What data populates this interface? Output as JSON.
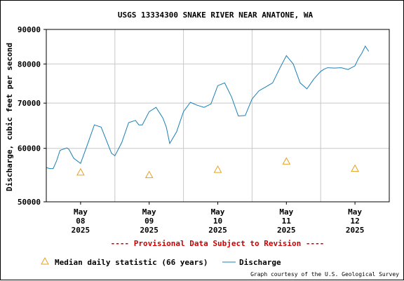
{
  "chart_data": {
    "type": "line",
    "title": "USGS 13334300 SNAKE RIVER NEAR ANATONE, WA",
    "ylabel": "Discharge, cubic feet per second",
    "yscale": "log",
    "ylim": [
      50000,
      90000
    ],
    "yticks": [
      50000,
      60000,
      70000,
      80000,
      90000
    ],
    "ytick_labels": [
      "50000",
      "60000",
      "70000",
      "80000",
      "90000"
    ],
    "xlim": [
      0,
      5
    ],
    "xticks": [
      {
        "x": 0.5,
        "month": "May",
        "day": "08",
        "year": "2025"
      },
      {
        "x": 1.5,
        "month": "May",
        "day": "09",
        "year": "2025"
      },
      {
        "x": 2.5,
        "month": "May",
        "day": "10",
        "year": "2025"
      },
      {
        "x": 3.5,
        "month": "May",
        "day": "11",
        "year": "2025"
      },
      {
        "x": 4.5,
        "month": "May",
        "day": "12",
        "year": "2025"
      }
    ],
    "grid": true,
    "series": [
      {
        "name": "Discharge",
        "color": "#1a7fb5",
        "x": [
          0,
          0.05,
          0.1,
          0.15,
          0.2,
          0.3,
          0.33,
          0.4,
          0.5,
          0.6,
          0.7,
          0.8,
          0.9,
          0.95,
          1.0,
          1.1,
          1.2,
          1.3,
          1.35,
          1.4,
          1.5,
          1.6,
          1.7,
          1.75,
          1.8,
          1.9,
          2.0,
          2.1,
          2.2,
          2.3,
          2.4,
          2.5,
          2.6,
          2.7,
          2.8,
          2.9,
          3.0,
          3.1,
          3.2,
          3.3,
          3.4,
          3.5,
          3.6,
          3.7,
          3.8,
          3.9,
          4.0,
          4.05,
          4.1,
          4.2,
          4.3,
          4.4,
          4.5,
          4.55,
          4.6,
          4.65,
          4.7
        ],
        "values": [
          56200,
          56000,
          56000,
          57500,
          59600,
          60100,
          59800,
          58000,
          57000,
          60800,
          65000,
          64500,
          60800,
          59000,
          58500,
          61200,
          65500,
          66000,
          65000,
          65000,
          68000,
          69000,
          66500,
          64500,
          61000,
          63500,
          68000,
          70200,
          69500,
          69000,
          69800,
          74300,
          75000,
          71500,
          67000,
          67100,
          71000,
          73000,
          74000,
          75000,
          78700,
          82300,
          80000,
          75000,
          73500,
          76000,
          78000,
          78600,
          79000,
          78900,
          79000,
          78500,
          79500,
          81500,
          83000,
          85000,
          83500
        ]
      }
    ],
    "median_points": {
      "name": "Median daily statistic (66 years)",
      "color": "#e6a020",
      "x": [
        0.5,
        1.5,
        2.5,
        3.5,
        4.5
      ],
      "values": [
        55300,
        54800,
        55800,
        57400,
        56000
      ]
    },
    "notice": "---- Provisional Data Subject to Revision ----",
    "notice_color": "#cc0000",
    "legend": {
      "placement": "bottom",
      "median_label": "Median daily statistic (66 years)",
      "discharge_label": "Discharge"
    },
    "credit": "Graph courtesy of the U.S. Geological Survey"
  }
}
